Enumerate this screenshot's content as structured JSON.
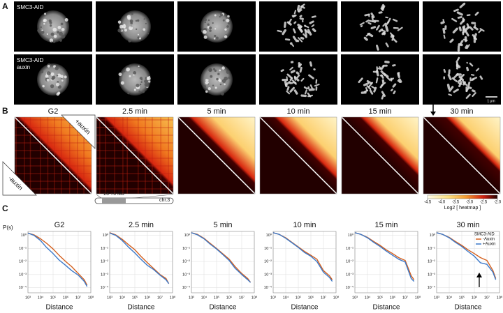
{
  "panel_labels": [
    "A",
    "B",
    "C"
  ],
  "panel_a": {
    "row_labels": [
      [
        "SMC3-AID"
      ],
      [
        "SMC3-AID",
        "auxin"
      ]
    ],
    "scale_bar": "1 μm"
  },
  "panel_b": {
    "titles": [
      "G2",
      "2.5 min",
      "5 min",
      "10 min",
      "15 min",
      "30 min"
    ],
    "upper_label": "+auxin",
    "lower_label": "-auxin",
    "region": "20-70 Mb",
    "chromosome": "chr.3",
    "colorbar": {
      "label": "Log2 [ heatmap ]",
      "clim": [
        -4.5,
        -2.0
      ],
      "ticks": [
        -4.5,
        {
          "value": -4,
          "label": "-4.0"
        },
        -3.5,
        {
          "value": -3,
          "label": "-3.0"
        },
        -2.5,
        {
          "value": -2,
          "label": "-2.0"
        }
      ]
    }
  },
  "chart_data": [
    {
      "type": "line",
      "title": "G2",
      "ylabel": "P(s)",
      "xlabel": "Distance",
      "xscale": "log",
      "yscale": "log",
      "grid": true,
      "x": [
        1000,
        3000,
        10000,
        30000,
        100000,
        300000,
        1000000,
        3000000,
        10000000,
        30000000,
        50000000
      ],
      "series": [
        {
          "color": "#d4601e",
          "values": [
            1.5,
            1.1,
            0.55,
            0.25,
            0.09,
            0.03,
            0.01,
            0.004,
            0.0012,
            0.0004,
            0.00015
          ]
        },
        {
          "color": "#3a78c9",
          "values": [
            1.5,
            1.0,
            0.4,
            0.12,
            0.04,
            0.013,
            0.005,
            0.002,
            0.0009,
            0.0003,
            0.00012
          ]
        }
      ],
      "xlim": [
        1000,
        100000000
      ],
      "ylim": [
        4e-05,
        2
      ],
      "xticks": [
        {
          "value": 1000,
          "label": "10³"
        },
        {
          "value": 10000,
          "label": "10⁴"
        },
        {
          "value": 100000,
          "label": "10⁵"
        },
        {
          "value": 1000000,
          "label": "10⁶"
        },
        {
          "value": 10000000,
          "label": "10⁷"
        },
        {
          "value": 100000000,
          "label": "10⁸"
        }
      ],
      "yticks": [
        {
          "value": 1,
          "label": "10⁰"
        },
        {
          "value": 0.1,
          "label": "10⁻¹"
        },
        {
          "value": 0.01,
          "label": "10⁻²"
        },
        {
          "value": 0.001,
          "label": "10⁻³"
        },
        {
          "value": 0.0001,
          "label": "10⁻⁴"
        }
      ]
    },
    {
      "type": "line",
      "title": "2.5 min",
      "xlabel": "Distance",
      "xscale": "log",
      "yscale": "log",
      "grid": true,
      "x": [
        1000,
        3000,
        10000,
        30000,
        100000,
        300000,
        1000000,
        3000000,
        10000000,
        30000000,
        50000000
      ],
      "series": [
        {
          "color": "#d4601e",
          "values": [
            1.6,
            1.1,
            0.5,
            0.2,
            0.08,
            0.025,
            0.008,
            0.003,
            0.001,
            0.0005,
            0.0002
          ]
        },
        {
          "color": "#3a78c9",
          "values": [
            1.5,
            1.0,
            0.4,
            0.13,
            0.045,
            0.015,
            0.005,
            0.0025,
            0.0009,
            0.0004,
            0.0002
          ]
        }
      ],
      "xlim": [
        1000,
        100000000
      ],
      "ylim": [
        4e-05,
        2
      ],
      "xticks": [
        {
          "value": 1000,
          "label": "10³"
        },
        {
          "value": 10000,
          "label": "10⁴"
        },
        {
          "value": 100000,
          "label": "10⁵"
        },
        {
          "value": 1000000,
          "label": "10⁶"
        },
        {
          "value": 10000000,
          "label": "10⁷"
        },
        {
          "value": 100000000,
          "label": "10⁸"
        }
      ],
      "yticks": [
        {
          "value": 1,
          "label": "10⁰"
        },
        {
          "value": 0.1,
          "label": "10⁻¹"
        },
        {
          "value": 0.01,
          "label": "10⁻²"
        },
        {
          "value": 0.001,
          "label": "10⁻³"
        },
        {
          "value": 0.0001,
          "label": "10⁻⁴"
        }
      ]
    },
    {
      "type": "line",
      "title": "5 min",
      "xlabel": "Distance",
      "xscale": "log",
      "yscale": "log",
      "grid": true,
      "x": [
        1000,
        3000,
        10000,
        30000,
        100000,
        300000,
        1000000,
        3000000,
        10000000,
        30000000,
        50000000
      ],
      "series": [
        {
          "color": "#d4601e",
          "values": [
            1.6,
            1.2,
            0.6,
            0.25,
            0.1,
            0.04,
            0.015,
            0.004,
            0.0012,
            0.0005,
            0.00025
          ]
        },
        {
          "color": "#3a78c9",
          "values": [
            1.6,
            1.1,
            0.55,
            0.22,
            0.09,
            0.035,
            0.012,
            0.003,
            0.001,
            0.0004,
            0.00025
          ]
        }
      ],
      "xlim": [
        1000,
        100000000
      ],
      "ylim": [
        4e-05,
        2
      ],
      "xticks": [
        {
          "value": 1000,
          "label": "10³"
        },
        {
          "value": 10000,
          "label": "10⁴"
        },
        {
          "value": 100000,
          "label": "10⁵"
        },
        {
          "value": 1000000,
          "label": "10⁶"
        },
        {
          "value": 10000000,
          "label": "10⁷"
        },
        {
          "value": 100000000,
          "label": "10⁸"
        }
      ],
      "yticks": [
        {
          "value": 1,
          "label": "10⁰"
        },
        {
          "value": 0.1,
          "label": "10⁻¹"
        },
        {
          "value": 0.01,
          "label": "10⁻²"
        },
        {
          "value": 0.001,
          "label": "10⁻³"
        },
        {
          "value": 0.0001,
          "label": "10⁻⁴"
        }
      ]
    },
    {
      "type": "line",
      "title": "10 min",
      "xlabel": "Distance",
      "xscale": "log",
      "yscale": "log",
      "grid": true,
      "x": [
        1000,
        3000,
        10000,
        30000,
        100000,
        300000,
        1000000,
        3000000,
        10000000,
        30000000,
        50000000
      ],
      "series": [
        {
          "color": "#d4601e",
          "values": [
            1.6,
            1.2,
            0.65,
            0.3,
            0.13,
            0.06,
            0.03,
            0.015,
            0.002,
            0.0008,
            0.0004
          ]
        },
        {
          "color": "#3a78c9",
          "values": [
            1.6,
            1.2,
            0.6,
            0.28,
            0.12,
            0.05,
            0.025,
            0.01,
            0.0015,
            0.0006,
            0.0003
          ]
        }
      ],
      "xlim": [
        1000,
        100000000
      ],
      "ylim": [
        4e-05,
        2
      ],
      "xticks": [
        {
          "value": 1000,
          "label": "10³"
        },
        {
          "value": 10000,
          "label": "10⁴"
        },
        {
          "value": 100000,
          "label": "10⁵"
        },
        {
          "value": 1000000,
          "label": "10⁶"
        },
        {
          "value": 10000000,
          "label": "10⁷"
        },
        {
          "value": 100000000,
          "label": "10⁸"
        }
      ],
      "yticks": [
        {
          "value": 1,
          "label": "10⁰"
        },
        {
          "value": 0.1,
          "label": "10⁻¹"
        },
        {
          "value": 0.01,
          "label": "10⁻²"
        },
        {
          "value": 0.001,
          "label": "10⁻³"
        },
        {
          "value": 0.0001,
          "label": "10⁻⁴"
        }
      ]
    },
    {
      "type": "line",
      "title": "15 min",
      "xlabel": "Distance",
      "xscale": "log",
      "yscale": "log",
      "grid": true,
      "x": [
        1000,
        3000,
        10000,
        30000,
        100000,
        300000,
        1000000,
        3000000,
        10000000,
        30000000,
        50000000
      ],
      "series": [
        {
          "color": "#d4601e",
          "values": [
            1.6,
            1.2,
            0.7,
            0.35,
            0.17,
            0.08,
            0.04,
            0.02,
            0.012,
            0.0008,
            0.0004
          ]
        },
        {
          "color": "#3a78c9",
          "values": [
            1.6,
            1.2,
            0.65,
            0.3,
            0.14,
            0.065,
            0.03,
            0.015,
            0.009,
            0.0005,
            0.0003
          ]
        }
      ],
      "xlim": [
        1000,
        100000000
      ],
      "ylim": [
        4e-05,
        2
      ],
      "xticks": [
        {
          "value": 1000,
          "label": "10³"
        },
        {
          "value": 10000,
          "label": "10⁴"
        },
        {
          "value": 100000,
          "label": "10⁵"
        },
        {
          "value": 1000000,
          "label": "10⁶"
        },
        {
          "value": 10000000,
          "label": "10⁷"
        },
        {
          "value": 100000000,
          "label": "10⁸"
        }
      ],
      "yticks": [
        {
          "value": 1,
          "label": "10⁰"
        },
        {
          "value": 0.1,
          "label": "10⁻¹"
        },
        {
          "value": 0.01,
          "label": "10⁻²"
        },
        {
          "value": 0.001,
          "label": "10⁻³"
        },
        {
          "value": 0.0001,
          "label": "10⁻⁴"
        }
      ]
    },
    {
      "type": "line",
      "title": "30 min",
      "xlabel": "Distance",
      "xscale": "log",
      "yscale": "log",
      "grid": true,
      "legend": "upper right",
      "legend_title": "SMC3-AID",
      "x": [
        1000,
        3000,
        10000,
        30000,
        100000,
        300000,
        1000000,
        3000000,
        10000000,
        30000000,
        50000000
      ],
      "series": [
        {
          "name": "-Auxin",
          "color": "#d4601e",
          "values": [
            1.6,
            1.2,
            0.7,
            0.35,
            0.17,
            0.08,
            0.04,
            0.02,
            0.012,
            0.002,
            0.0005
          ]
        },
        {
          "name": "+Auxin",
          "color": "#3a78c9",
          "values": [
            1.6,
            1.2,
            0.65,
            0.3,
            0.14,
            0.06,
            0.025,
            0.008,
            0.006,
            0.0015,
            0.0004
          ]
        }
      ],
      "xlim": [
        1000,
        100000000
      ],
      "ylim": [
        4e-05,
        2
      ],
      "xticks": [
        {
          "value": 1000,
          "label": "10³"
        },
        {
          "value": 10000,
          "label": "10⁴"
        },
        {
          "value": 100000,
          "label": "10⁵"
        },
        {
          "value": 1000000,
          "label": "10⁶"
        },
        {
          "value": 10000000,
          "label": "10⁷"
        },
        {
          "value": 100000000,
          "label": "10⁸"
        }
      ],
      "yticks": [
        {
          "value": 1,
          "label": "10⁰"
        },
        {
          "value": 0.1,
          "label": "10⁻¹"
        },
        {
          "value": 0.01,
          "label": "10⁻²"
        },
        {
          "value": 0.001,
          "label": "10⁻³"
        },
        {
          "value": 0.0001,
          "label": "10⁻⁴"
        }
      ]
    }
  ]
}
